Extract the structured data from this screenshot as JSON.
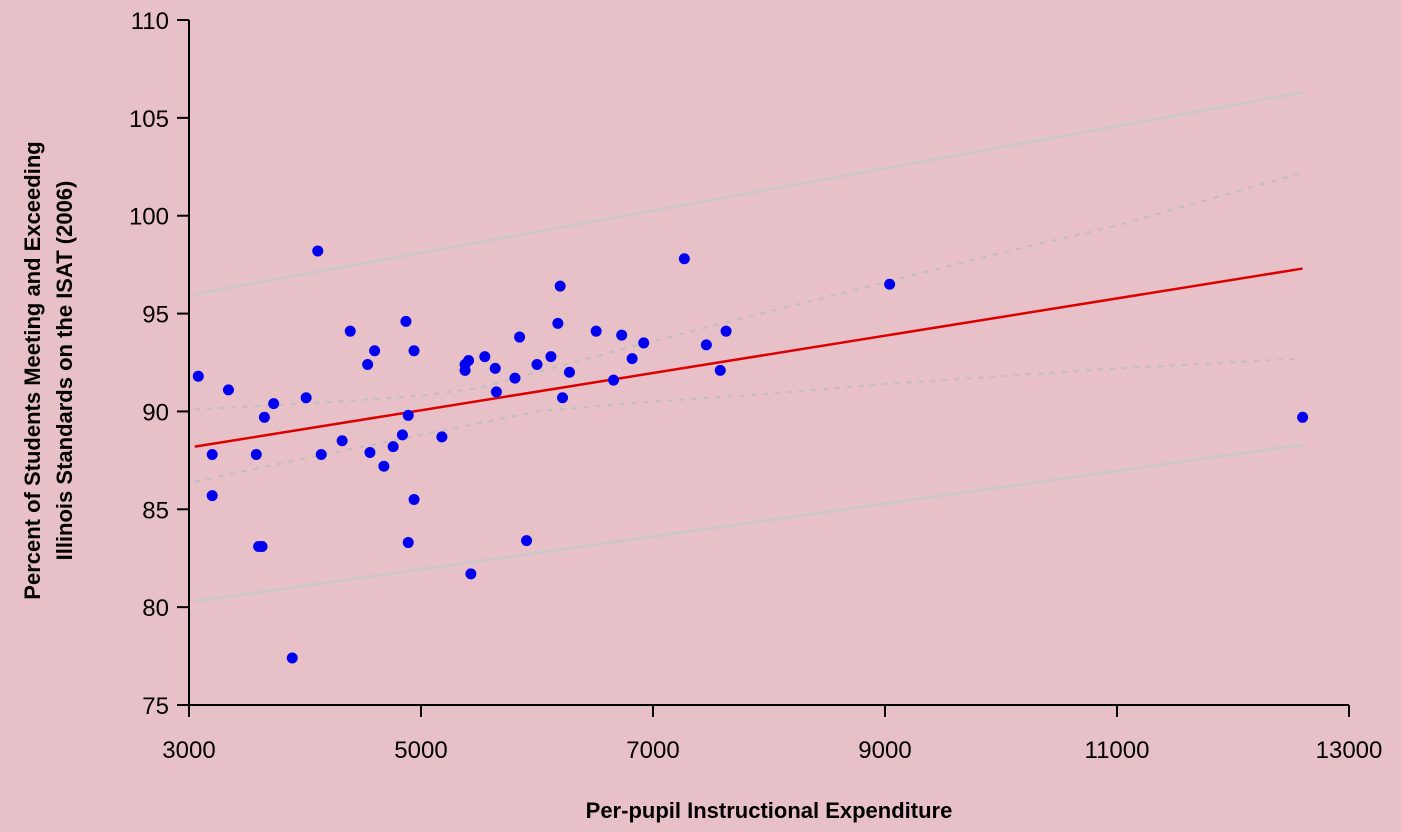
{
  "chart_data": {
    "type": "scatter",
    "title": "",
    "xlabel": "Per-pupil Instructional Expenditure",
    "ylabel_lines": [
      "Percent of Students Meeting and Exceeding",
      "Illinois Standards on the ISAT (2006)"
    ],
    "xlim": [
      3000,
      13000
    ],
    "ylim": [
      75,
      110
    ],
    "xticks": [
      3000,
      5000,
      7000,
      9000,
      11000,
      13000
    ],
    "yticks": [
      75,
      80,
      85,
      90,
      95,
      100,
      105,
      110
    ],
    "grid": false,
    "legend": "none",
    "colors": {
      "background": "#e8c0c8",
      "points": "#0000ee",
      "trend": "#dd0000",
      "confidence": "#bfbfbf",
      "prediction": "#c8c8c8",
      "axis": "#000000"
    },
    "points": [
      {
        "x": 3080,
        "y": 91.8
      },
      {
        "x": 3200,
        "y": 87.8
      },
      {
        "x": 3200,
        "y": 85.7
      },
      {
        "x": 3340,
        "y": 91.1
      },
      {
        "x": 3580,
        "y": 87.8
      },
      {
        "x": 3600,
        "y": 83.1
      },
      {
        "x": 3630,
        "y": 83.1
      },
      {
        "x": 3650,
        "y": 89.7
      },
      {
        "x": 3730,
        "y": 90.4
      },
      {
        "x": 3890,
        "y": 77.4
      },
      {
        "x": 4010,
        "y": 90.7
      },
      {
        "x": 4110,
        "y": 98.2
      },
      {
        "x": 4140,
        "y": 87.8
      },
      {
        "x": 4320,
        "y": 88.5
      },
      {
        "x": 4390,
        "y": 94.1
      },
      {
        "x": 4540,
        "y": 92.4
      },
      {
        "x": 4560,
        "y": 87.9
      },
      {
        "x": 4600,
        "y": 93.1
      },
      {
        "x": 4680,
        "y": 87.2
      },
      {
        "x": 4760,
        "y": 88.2
      },
      {
        "x": 4840,
        "y": 88.8
      },
      {
        "x": 4870,
        "y": 94.6
      },
      {
        "x": 4890,
        "y": 89.8
      },
      {
        "x": 4890,
        "y": 83.3
      },
      {
        "x": 4940,
        "y": 93.1
      },
      {
        "x": 4940,
        "y": 85.5
      },
      {
        "x": 5180,
        "y": 88.7
      },
      {
        "x": 5380,
        "y": 92.1
      },
      {
        "x": 5380,
        "y": 92.4
      },
      {
        "x": 5410,
        "y": 92.6
      },
      {
        "x": 5430,
        "y": 81.7
      },
      {
        "x": 5550,
        "y": 92.8
      },
      {
        "x": 5640,
        "y": 92.2
      },
      {
        "x": 5650,
        "y": 91.0
      },
      {
        "x": 5810,
        "y": 91.7
      },
      {
        "x": 5850,
        "y": 93.8
      },
      {
        "x": 5910,
        "y": 83.4
      },
      {
        "x": 6000,
        "y": 92.4
      },
      {
        "x": 6120,
        "y": 92.8
      },
      {
        "x": 6180,
        "y": 94.5
      },
      {
        "x": 6200,
        "y": 96.4
      },
      {
        "x": 6220,
        "y": 90.7
      },
      {
        "x": 6280,
        "y": 92.0
      },
      {
        "x": 6510,
        "y": 94.1
      },
      {
        "x": 6660,
        "y": 91.6
      },
      {
        "x": 6730,
        "y": 93.9
      },
      {
        "x": 6820,
        "y": 92.7
      },
      {
        "x": 6920,
        "y": 93.5
      },
      {
        "x": 7270,
        "y": 97.8
      },
      {
        "x": 7460,
        "y": 93.4
      },
      {
        "x": 7580,
        "y": 92.1
      },
      {
        "x": 7630,
        "y": 94.1
      },
      {
        "x": 9040,
        "y": 96.5
      },
      {
        "x": 12600,
        "y": 89.7
      }
    ],
    "trendline": {
      "x": [
        3050,
        12600
      ],
      "y": [
        88.2,
        97.3
      ]
    },
    "confidence_band": {
      "x": [
        3050,
        4000,
        5000,
        5500,
        6000,
        7000,
        8000,
        9000,
        10000,
        11000,
        12600
      ],
      "upper": [
        90.1,
        90.4,
        90.8,
        91.2,
        92.0,
        93.6,
        95.1,
        96.6,
        98.1,
        99.5,
        102.2
      ],
      "lower": [
        86.4,
        87.6,
        88.8,
        89.4,
        90.0,
        90.5,
        90.9,
        91.4,
        91.8,
        92.2,
        92.7
      ]
    },
    "prediction_band": {
      "x": [
        3050,
        12600
      ],
      "upper": [
        96.0,
        106.3
      ],
      "lower": [
        80.3,
        88.3
      ]
    }
  }
}
